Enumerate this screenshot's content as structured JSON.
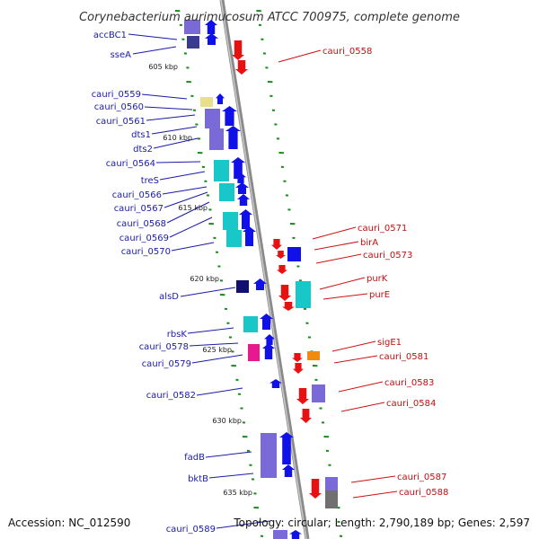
{
  "title": "Corynebacterium aurimucosum ATCC 700975, complete genome",
  "accession_text": "Accession: NC_012590",
  "summary_text": "Topology: circular; Length: 2,790,189 bp; Genes: 2,597",
  "colors": {
    "forward_cds": "#1010e8",
    "reverse_cds": "#e81010",
    "leader_left": "#1a1aa8",
    "leader_right": "#cc1010",
    "tick": "#1a8a1a",
    "backbone": "#8a8a8a",
    "cog_purple": "#7a6ad8",
    "cog_cyan": "#18c8c8",
    "cog_navy": "#101070",
    "cog_pink": "#e81890",
    "cog_yellow": "#e8e088",
    "cog_orange": "#f08a10",
    "cog_gray": "#707070"
  },
  "scale_labels": [
    "605 kbp",
    "610 kbp",
    "615 kbp",
    "620 kbp",
    "625 kbp",
    "630 kbp",
    "635 kbp"
  ],
  "left_genes": [
    "accBC1",
    "sseA",
    "cauri_0559",
    "cauri_0560",
    "cauri_0561",
    "dts1",
    "dts2",
    "cauri_0564",
    "treS",
    "cauri_0566",
    "cauri_0567",
    "cauri_0568",
    "cauri_0569",
    "cauri_0570",
    "alsD",
    "rbsK",
    "cauri_0578",
    "cauri_0579",
    "cauri_0582",
    "fadB",
    "bktB",
    "cauri_0589"
  ],
  "right_genes": [
    "cauri_0558",
    "cauri_0571",
    "birA",
    "cauri_0573",
    "purK",
    "purE",
    "sigE1",
    "cauri_0581",
    "cauri_0583",
    "cauri_0584",
    "cauri_0587",
    "cauri_0588"
  ]
}
